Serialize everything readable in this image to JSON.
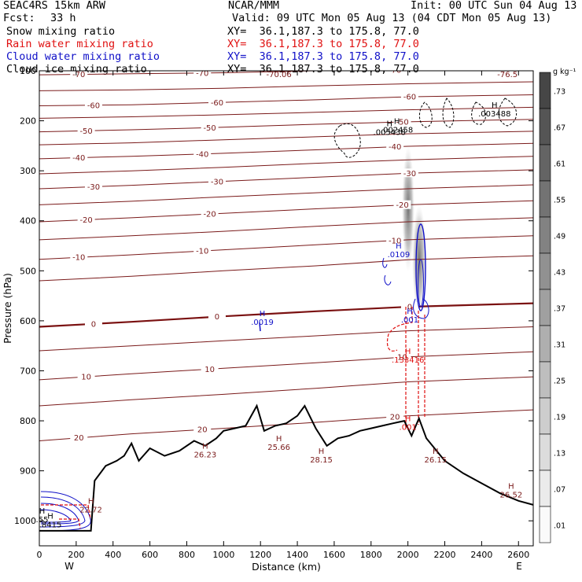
{
  "header": {
    "model": "SEAC4RS 15km ARW",
    "org": "NCAR/MMM",
    "init": "Init: 00 UTC Sun 04 Aug 13",
    "fcst_label": "Fcst:",
    "fcst_value": "33 h",
    "valid": "Valid: 09 UTC Mon 05 Aug 13 (04 CDT Mon 05 Aug 13)",
    "fields": [
      {
        "label": "Snow mixing ratio",
        "xy": "XY=  36.1,187.3 to 175.8, 77.0",
        "color": "#000000"
      },
      {
        "label": "Rain water mixing ratio",
        "xy": "XY=  36.1,187.3 to 175.8, 77.0",
        "color": "#e01010"
      },
      {
        "label": "Cloud water mixing ratio",
        "xy": "XY=  36.1,187.3 to 175.8, 77.0",
        "color": "#1010c8"
      },
      {
        "label": "Cloud ice mixing ratio",
        "xy": "XY=  36.1,187.3 to 175.8, 77.0",
        "color": "#000000"
      }
    ]
  },
  "colorbar": {
    "unit": "g kg⁻¹",
    "labels": [
      ".73",
      ".67",
      ".61",
      ".55",
      ".49",
      ".43",
      ".37",
      ".31",
      ".25",
      ".19",
      ".13",
      ".07",
      ".01"
    ]
  },
  "colors": {
    "temperature": "#7a1a1a",
    "zero_isotherm": "#7a1010",
    "terrain": "#000000",
    "rain": "#e01010",
    "cloud_water": "#1010c8"
  },
  "chart_data": {
    "type": "cross-section",
    "xlabel": "Distance (km)",
    "ylabel": "Pressure (hPa)",
    "xlim": [
      0,
      2680
    ],
    "ylim": [
      1050,
      100
    ],
    "x_ticks": [
      0,
      200,
      400,
      600,
      800,
      1000,
      1200,
      1400,
      1600,
      1800,
      2000,
      2200,
      2400,
      2600
    ],
    "y_ticks": [
      100,
      200,
      300,
      400,
      500,
      600,
      700,
      800,
      900,
      1000
    ],
    "x_tick_labels": [
      "0",
      "200",
      "400",
      "600",
      "800",
      "1000",
      "1200",
      "1400",
      "1600",
      "1800",
      "2000",
      "2200",
      "2400",
      "2600"
    ],
    "y_tick_labels": [
      "100",
      "200",
      "300",
      "400",
      "500",
      "600",
      "700",
      "800",
      "900",
      "1000"
    ],
    "endpoints": {
      "left": "W",
      "right": "E"
    },
    "isotherms": [
      {
        "temp": -70,
        "label": "-70",
        "points": [
          [
            0,
            108
          ],
          [
            500,
            106
          ],
          [
            1000,
            104
          ],
          [
            1500,
            100
          ],
          [
            2000,
            98
          ],
          [
            2680,
            96
          ]
        ]
      },
      {
        "temp": -65,
        "label": "",
        "points": [
          [
            0,
            140
          ],
          [
            500,
            138
          ],
          [
            1000,
            135
          ],
          [
            1500,
            130
          ],
          [
            2000,
            126
          ],
          [
            2680,
            122
          ]
        ]
      },
      {
        "temp": -60,
        "label": "-60",
        "points": [
          [
            0,
            170
          ],
          [
            500,
            168
          ],
          [
            1000,
            163
          ],
          [
            1500,
            158
          ],
          [
            2000,
            152
          ],
          [
            2680,
            148
          ]
        ]
      },
      {
        "temp": -55,
        "label": "",
        "points": [
          [
            0,
            195
          ],
          [
            500,
            192
          ],
          [
            1000,
            188
          ],
          [
            1500,
            183
          ],
          [
            2000,
            178
          ],
          [
            2680,
            173
          ]
        ]
      },
      {
        "temp": -50,
        "label": "-50",
        "points": [
          [
            0,
            222
          ],
          [
            500,
            218
          ],
          [
            1000,
            213
          ],
          [
            1500,
            207
          ],
          [
            2000,
            202
          ],
          [
            2680,
            197
          ]
        ]
      },
      {
        "temp": -45,
        "label": "",
        "points": [
          [
            0,
            248
          ],
          [
            500,
            244
          ],
          [
            1000,
            238
          ],
          [
            1500,
            232
          ],
          [
            2000,
            226
          ],
          [
            2680,
            221
          ]
        ]
      },
      {
        "temp": -40,
        "label": "-40",
        "points": [
          [
            0,
            276
          ],
          [
            500,
            271
          ],
          [
            1000,
            265
          ],
          [
            1500,
            258
          ],
          [
            2000,
            251
          ],
          [
            2680,
            245
          ]
        ]
      },
      {
        "temp": -35,
        "label": "",
        "points": [
          [
            0,
            306
          ],
          [
            500,
            300
          ],
          [
            1000,
            293
          ],
          [
            1500,
            285
          ],
          [
            2000,
            278
          ],
          [
            2680,
            271
          ]
        ]
      },
      {
        "temp": -30,
        "label": "-30",
        "points": [
          [
            0,
            336
          ],
          [
            500,
            329
          ],
          [
            1000,
            321
          ],
          [
            1500,
            313
          ],
          [
            2000,
            305
          ],
          [
            2680,
            298
          ]
        ]
      },
      {
        "temp": -25,
        "label": "",
        "points": [
          [
            0,
            368
          ],
          [
            500,
            361
          ],
          [
            1000,
            352
          ],
          [
            1500,
            344
          ],
          [
            2000,
            336
          ],
          [
            2680,
            328
          ]
        ]
      },
      {
        "temp": -20,
        "label": "-20",
        "points": [
          [
            0,
            402
          ],
          [
            500,
            394
          ],
          [
            1000,
            385
          ],
          [
            1500,
            376
          ],
          [
            2000,
            368
          ],
          [
            2680,
            360
          ]
        ]
      },
      {
        "temp": -15,
        "label": "",
        "points": [
          [
            0,
            438
          ],
          [
            500,
            430
          ],
          [
            1000,
            421
          ],
          [
            1500,
            411
          ],
          [
            2000,
            402
          ],
          [
            2680,
            394
          ]
        ]
      },
      {
        "temp": -10,
        "label": "-10",
        "points": [
          [
            0,
            477
          ],
          [
            500,
            468
          ],
          [
            1000,
            458
          ],
          [
            1500,
            448
          ],
          [
            2000,
            438
          ],
          [
            2680,
            430
          ]
        ]
      },
      {
        "temp": -5,
        "label": "",
        "points": [
          [
            0,
            520
          ],
          [
            500,
            511
          ],
          [
            1000,
            500
          ],
          [
            1500,
            490
          ],
          [
            2000,
            478
          ],
          [
            2680,
            470
          ]
        ]
      },
      {
        "temp": 0,
        "label": "0",
        "points": [
          [
            0,
            612
          ],
          [
            500,
            602
          ],
          [
            1000,
            591
          ],
          [
            1500,
            581
          ],
          [
            2000,
            572
          ],
          [
            2680,
            565
          ]
        ]
      },
      {
        "temp": 5,
        "label": "",
        "points": [
          [
            0,
            660
          ],
          [
            500,
            650
          ],
          [
            1000,
            640
          ],
          [
            1500,
            630
          ],
          [
            2000,
            620
          ],
          [
            2680,
            612
          ]
        ]
      },
      {
        "temp": 10,
        "label": "10",
        "points": [
          [
            0,
            718
          ],
          [
            500,
            706
          ],
          [
            1000,
            695
          ],
          [
            1500,
            684
          ],
          [
            2000,
            672
          ],
          [
            2680,
            662
          ]
        ]
      },
      {
        "temp": 15,
        "label": "",
        "points": [
          [
            0,
            770
          ],
          [
            500,
            758
          ],
          [
            1000,
            747
          ],
          [
            1500,
            735
          ],
          [
            2000,
            722
          ],
          [
            2680,
            712
          ]
        ]
      },
      {
        "temp": 20,
        "label": "20",
        "points": [
          [
            0,
            840
          ],
          [
            500,
            826
          ],
          [
            1000,
            815
          ],
          [
            1500,
            803
          ],
          [
            2000,
            790
          ],
          [
            2680,
            778
          ]
        ]
      }
    ],
    "terrain": [
      [
        0,
        1020
      ],
      [
        100,
        1020
      ],
      [
        200,
        1020
      ],
      [
        280,
        1020
      ],
      [
        300,
        920
      ],
      [
        360,
        890
      ],
      [
        420,
        880
      ],
      [
        460,
        870
      ],
      [
        500,
        845
      ],
      [
        540,
        880
      ],
      [
        600,
        855
      ],
      [
        680,
        870
      ],
      [
        760,
        860
      ],
      [
        840,
        840
      ],
      [
        900,
        850
      ],
      [
        960,
        835
      ],
      [
        1000,
        820
      ],
      [
        1060,
        815
      ],
      [
        1120,
        810
      ],
      [
        1180,
        770
      ],
      [
        1220,
        820
      ],
      [
        1280,
        810
      ],
      [
        1340,
        805
      ],
      [
        1400,
        790
      ],
      [
        1440,
        770
      ],
      [
        1500,
        815
      ],
      [
        1560,
        850
      ],
      [
        1620,
        835
      ],
      [
        1680,
        830
      ],
      [
        1740,
        820
      ],
      [
        1800,
        815
      ],
      [
        1860,
        810
      ],
      [
        1920,
        805
      ],
      [
        1980,
        800
      ],
      [
        2020,
        830
      ],
      [
        2060,
        795
      ],
      [
        2100,
        835
      ],
      [
        2200,
        880
      ],
      [
        2300,
        905
      ],
      [
        2400,
        925
      ],
      [
        2500,
        945
      ],
      [
        2600,
        960
      ],
      [
        2680,
        968
      ]
    ],
    "labels_high": [
      {
        "x": 1900,
        "p": 225,
        "value": ".005438"
      },
      {
        "x": 1940,
        "p": 220,
        "value": ".002458"
      },
      {
        "x": 2470,
        "p": 188,
        "value": ".003488"
      },
      {
        "x": 1950,
        "p": 470,
        "value": ".0109"
      },
      {
        "x": 2010,
        "p": 600,
        "value": ".001"
      },
      {
        "x": 1210,
        "p": 605,
        "value": ".0019"
      },
      {
        "x": 2000,
        "p": 680,
        "value": ".133416"
      },
      {
        "x": 2000,
        "p": 815,
        "value": ".001"
      },
      {
        "x": 1300,
        "p": 855,
        "value": "25.66"
      },
      {
        "x": 900,
        "p": 870,
        "value": "26.23"
      },
      {
        "x": 1530,
        "p": 880,
        "value": "28.15"
      },
      {
        "x": 2150,
        "p": 880,
        "value": "26.15"
      },
      {
        "x": 2560,
        "p": 950,
        "value": "26.52"
      },
      {
        "x": 280,
        "p": 980,
        "value": "22.72"
      },
      {
        "x": 60,
        "p": 1010,
        "value": ".8415"
      },
      {
        "x": 15,
        "p": 1000,
        "value": ".55"
      }
    ],
    "top_labels": [
      {
        "x": 1300,
        "p": 100,
        "value": "-70.06"
      },
      {
        "x": 2540,
        "p": 100,
        "value": "-76.5"
      }
    ]
  }
}
